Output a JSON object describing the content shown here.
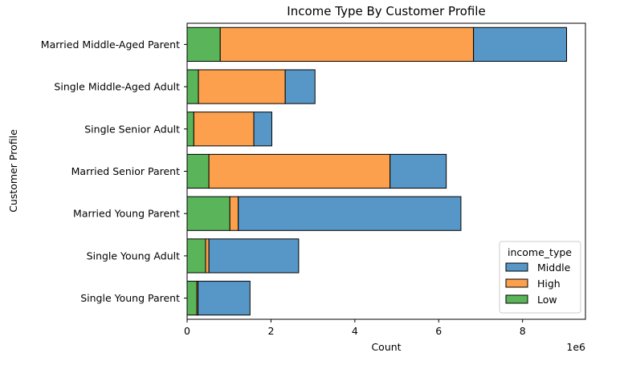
{
  "chart_data": {
    "type": "bar",
    "orientation": "horizontal",
    "stacked": true,
    "title": "Income Type By Customer Profile",
    "xlabel": "Count",
    "ylabel": "Customer Profile",
    "x_multiplier_label": "1e6",
    "xlim": [
      0,
      9.5
    ],
    "x_ticks": [
      0,
      2,
      4,
      6,
      8
    ],
    "x_tick_labels": [
      "0",
      "2",
      "4",
      "6",
      "8"
    ],
    "grid": false,
    "legend_position": "bottom-right",
    "legend_title": "income_type",
    "categories": [
      "Married Middle-Aged Parent",
      "Single Middle-Aged Adult",
      "Single Senior Adult",
      "Married Senior Parent",
      "Married Young Parent",
      "Single Young Adult",
      "Single Young Parent"
    ],
    "series": [
      {
        "name": "Low",
        "color": "#5ab55a",
        "values": [
          0.79,
          0.27,
          0.16,
          0.52,
          1.02,
          0.44,
          0.23
        ]
      },
      {
        "name": "High",
        "color": "#fda04d",
        "values": [
          6.04,
          2.07,
          1.43,
          4.32,
          0.2,
          0.08,
          0.03
        ]
      },
      {
        "name": "Middle",
        "color": "#5797c7",
        "values": [
          2.22,
          0.71,
          0.43,
          1.34,
          5.31,
          2.14,
          1.24
        ]
      }
    ],
    "legend_order": [
      "Middle",
      "High",
      "Low"
    ]
  }
}
